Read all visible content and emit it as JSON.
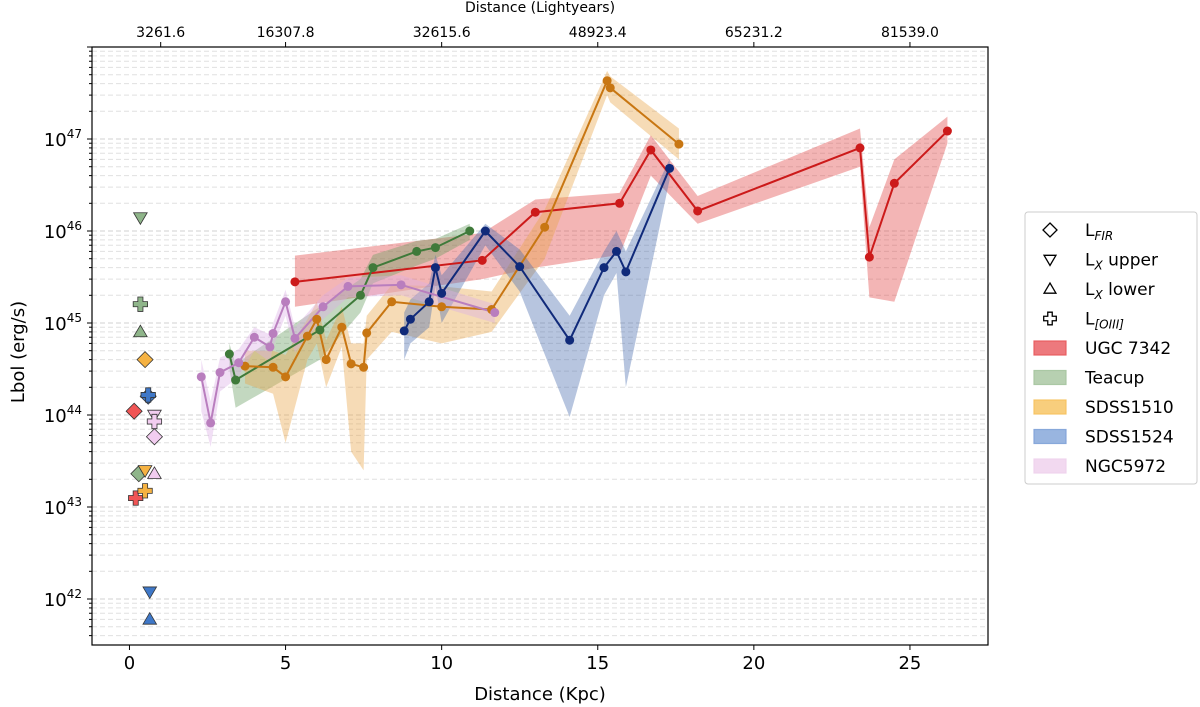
{
  "chart_data": {
    "type": "line",
    "xlabel": "Distance (Kpc)",
    "ylabel": "Lbol (erg/s)",
    "top_xlabel": "Distance (Lightyears)",
    "xlim": [
      -1.2,
      27.5
    ],
    "ylim_log10": [
      41.5,
      48.0
    ],
    "x_ticks": [
      0,
      5,
      10,
      15,
      20,
      25
    ],
    "x_tick_labels": [
      "0",
      "5",
      "10",
      "15",
      "20",
      "25"
    ],
    "y_ticks_log10": [
      42,
      43,
      44,
      45,
      46,
      47
    ],
    "top_ticks": [
      1,
      5,
      10,
      15,
      20,
      25
    ],
    "top_tick_labels": [
      "3261.6",
      "16307.8",
      "32615.6",
      "48923.4",
      "65231.2",
      "81539.0"
    ],
    "grid": "horizontal dashed (log minor)",
    "legend_position": "right",
    "legend": [
      {
        "label": "L",
        "sub": "FIR",
        "suffix": "",
        "marker": "diamond"
      },
      {
        "label": "L",
        "sub": "X",
        "suffix": " upper",
        "marker": "triangle-down"
      },
      {
        "label": "L",
        "sub": "X",
        "suffix": " lower",
        "marker": "triangle-up"
      },
      {
        "label": "L",
        "sub": "[OIII]",
        "suffix": "",
        "marker": "plus"
      },
      {
        "label": "UGC 7342",
        "sub": "",
        "suffix": "",
        "marker": "patch",
        "color": "#e8585c"
      },
      {
        "label": "Teacup",
        "sub": "",
        "suffix": "",
        "marker": "patch",
        "color": "#a5c49e"
      },
      {
        "label": "SDSS1510",
        "sub": "",
        "suffix": "",
        "marker": "patch",
        "color": "#f6c25d"
      },
      {
        "label": "SDSS1524",
        "sub": "",
        "suffix": "",
        "marker": "patch",
        "color": "#7fa2d8"
      },
      {
        "label": "NGC5972",
        "sub": "",
        "suffix": "",
        "marker": "patch",
        "color": "#efd0ec"
      }
    ],
    "series": [
      {
        "name": "UGC 7342",
        "color": "#cc1a1a",
        "band_color": "#e04646",
        "x": [
          5.3,
          11.3,
          13.0,
          15.7,
          16.7,
          18.2,
          23.4,
          23.7,
          24.5,
          26.2
        ],
        "y": [
          2.8e+45,
          4.8e+45,
          1.6e+46,
          2e+46,
          7.6e+46,
          1.65e+46,
          8e+46,
          5.2e+45,
          3.3e+46,
          1.22e+47
        ],
        "y_low": [
          1.5e+45,
          3e+45,
          4e+45,
          5.5e+45,
          4e+46,
          1.2e+46,
          5e+46,
          1.9e+45,
          1.7e+45,
          9e+46
        ],
        "y_high": [
          5.4e+45,
          9.5e+45,
          2.2e+46,
          2.6e+46,
          1.1e+47,
          2.4e+46,
          1.3e+47,
          1.1e+46,
          6e+46,
          1.75e+47
        ]
      },
      {
        "name": "Teacup",
        "color": "#3f7a3a",
        "band_color": "#6a9e62",
        "x": [
          3.2,
          3.4,
          6.1,
          7.4,
          7.8,
          9.2,
          9.8,
          10.9
        ],
        "y": [
          4.6e+44,
          2.4e+44,
          8.4e+44,
          2e+45,
          4e+45,
          6e+45,
          6.6e+45,
          1e+46
        ],
        "y_low": [
          3.2e+44,
          1.2e+44,
          4e+44,
          1.3e+45,
          2.7e+45,
          4.2e+45,
          5e+45,
          8e+45
        ],
        "y_high": [
          6e+44,
          3.6e+44,
          1.5e+45,
          3e+45,
          5.5e+45,
          7.8e+45,
          8.2e+45,
          1.2e+46
        ]
      },
      {
        "name": "SDSS1510",
        "color": "#c87612",
        "band_color": "#e8a448",
        "x": [
          3.7,
          4.6,
          5.0,
          5.7,
          6.0,
          6.3,
          6.8,
          7.1,
          7.5,
          7.6,
          8.4,
          10.0,
          11.6,
          13.3,
          15.3,
          15.4,
          17.6
        ],
        "y": [
          3.4e+44,
          3.3e+44,
          2.6e+44,
          7.2e+44,
          1.1e+45,
          4e+44,
          9e+44,
          3.6e+44,
          3.3e+44,
          7.8e+44,
          1.7e+45,
          1.5e+45,
          1.4e+45,
          1.1e+46,
          4.3e+47,
          3.6e+47,
          8.8e+46
        ],
        "y_low": [
          2.2e+44,
          1.7e+44,
          5e+43,
          4e+44,
          6e+44,
          2e+44,
          5.5e+44,
          4e+43,
          2.5e+43,
          4e+44,
          8e+44,
          6e+44,
          8e+44,
          5e+45,
          3e+47,
          2.5e+47,
          6e+46
        ],
        "y_high": [
          5e+44,
          5e+44,
          4.5e+44,
          1.1e+45,
          1.7e+45,
          6.5e+44,
          1.5e+45,
          6e+44,
          6e+44,
          1.2e+45,
          2.6e+45,
          2.5e+45,
          2.2e+45,
          1.7e+46,
          5.5e+47,
          4.8e+47,
          1.3e+47
        ]
      },
      {
        "name": "SDSS1524",
        "color": "#102a7a",
        "band_color": "#4c6fb0",
        "x": [
          8.8,
          9.0,
          9.6,
          9.8,
          10.0,
          11.4,
          12.5,
          14.1,
          15.2,
          15.6,
          15.9,
          17.3
        ],
        "y": [
          8.2e+44,
          1.1e+45,
          1.7e+45,
          4e+45,
          2.1e+45,
          1e+46,
          4.1e+45,
          6.5e+44,
          4e+45,
          6e+45,
          3.6e+45,
          4.8e+46
        ],
        "y_low": [
          4e+44,
          6e+44,
          9e+44,
          2.5e+45,
          1e+45,
          7e+45,
          2.2e+45,
          9.5e+43,
          2e+45,
          3.5e+45,
          2e+44,
          3.6e+46
        ],
        "y_high": [
          1.3e+45,
          1.8e+45,
          2.7e+45,
          5.5e+45,
          3.3e+45,
          1.2e+46,
          6.3e+45,
          1.2e+45,
          6e+45,
          1e+46,
          6e+45,
          6e+46
        ]
      },
      {
        "name": "NGC5972",
        "color": "#b97ebe",
        "band_color": "#dcaee6",
        "x": [
          2.3,
          2.6,
          2.9,
          3.5,
          4.0,
          4.5,
          4.6,
          5.0,
          5.3,
          6.2,
          7.0,
          8.7,
          11.7
        ],
        "y": [
          2.6e+44,
          8.2e+43,
          2.9e+44,
          3.7e+44,
          7e+44,
          5.5e+44,
          7.7e+44,
          1.7e+45,
          6.8e+44,
          1.5e+45,
          2.5e+45,
          2.6e+45,
          1.3e+45
        ],
        "y_low": [
          1.1e+44,
          4.5e+43,
          1.8e+44,
          2.6e+44,
          5e+44,
          3.8e+44,
          5.5e+44,
          1.2e+45,
          4.8e+44,
          1.1e+45,
          1.9e+45,
          2e+45,
          1e+45
        ],
        "y_high": [
          4e+44,
          1.4e+44,
          4.2e+44,
          5.2e+44,
          9e+44,
          7.5e+44,
          1e+45,
          2.3e+45,
          9e+44,
          2e+45,
          3.1e+45,
          3.3e+45,
          1.6e+45
        ]
      }
    ],
    "point_estimates": [
      {
        "object": "UGC 7342",
        "type": "FIR",
        "x": 0.15,
        "y": 1.1e+44,
        "color": "#f05555"
      },
      {
        "object": "UGC 7342",
        "type": "OIII",
        "x": 0.2,
        "y": 1.25e+43,
        "color": "#f05555"
      },
      {
        "object": "Teacup",
        "type": "X_upper",
        "x": 0.35,
        "y": 1.4e+46,
        "color": "#8fb58a"
      },
      {
        "object": "Teacup",
        "type": "OIII",
        "x": 0.35,
        "y": 1.6e+45,
        "color": "#8fb58a"
      },
      {
        "object": "Teacup",
        "type": "X_lower",
        "x": 0.35,
        "y": 8e+44,
        "color": "#8fb58a"
      },
      {
        "object": "Teacup",
        "type": "FIR",
        "x": 0.3,
        "y": 2.3e+43,
        "color": "#8fb58a"
      },
      {
        "object": "SDSS1510",
        "type": "FIR",
        "x": 0.5,
        "y": 4e+44,
        "color": "#f5b242"
      },
      {
        "object": "SDSS1510",
        "type": "X_upper",
        "x": 0.5,
        "y": 2.5e+43,
        "color": "#f5b242"
      },
      {
        "object": "SDSS1510",
        "type": "OIII",
        "x": 0.5,
        "y": 1.5e+43,
        "color": "#f5b242"
      },
      {
        "object": "SDSS1524",
        "type": "FIR",
        "x": 0.6,
        "y": 1.6e+44,
        "color": "#3f78c8"
      },
      {
        "object": "SDSS1524",
        "type": "OIII",
        "x": 0.6,
        "y": 1.65e+44,
        "color": "#3f78c8"
      },
      {
        "object": "SDSS1524",
        "type": "X_upper",
        "x": 0.65,
        "y": 1.2e+42,
        "color": "#3f78c8"
      },
      {
        "object": "SDSS1524",
        "type": "X_lower",
        "x": 0.65,
        "y": 6e+41,
        "color": "#3f78c8"
      },
      {
        "object": "NGC5972",
        "type": "X_upper",
        "x": 0.8,
        "y": 1e+44,
        "color": "#f2cdf0"
      },
      {
        "object": "NGC5972",
        "type": "OIII",
        "x": 0.8,
        "y": 8.5e+43,
        "color": "#f2cdf0"
      },
      {
        "object": "NGC5972",
        "type": "FIR",
        "x": 0.8,
        "y": 5.8e+43,
        "color": "#f2cdf0"
      },
      {
        "object": "NGC5972",
        "type": "X_lower",
        "x": 0.8,
        "y": 2.3e+43,
        "color": "#f2cdf0"
      }
    ]
  }
}
